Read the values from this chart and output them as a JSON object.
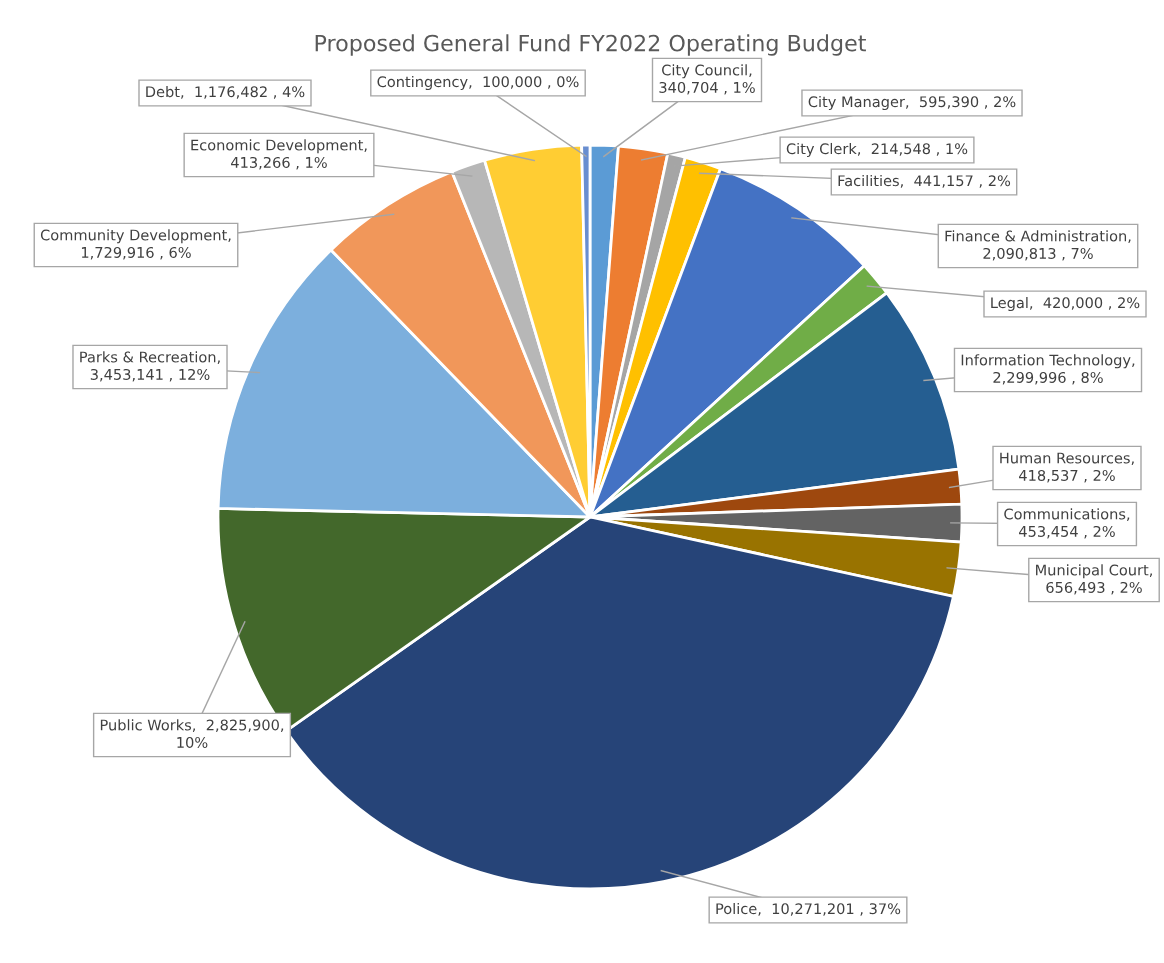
{
  "chart_data": {
    "type": "pie",
    "title": "Proposed General Fund FY2022 Operating Budget",
    "categories": [
      "City Council",
      "City Manager",
      "City Clerk",
      "Facilities",
      "Finance & Administration",
      "Legal",
      "Information Technology",
      "Human Resources",
      "Communications",
      "Municipal Court",
      "Police",
      "Public Works",
      "Parks & Recreation",
      "Community Development",
      "Economic Development",
      "Debt",
      "Contingency"
    ],
    "values": [
      340704,
      595390,
      214548,
      441157,
      2090813,
      420000,
      2299996,
      418537,
      453454,
      656493,
      10271201,
      2825900,
      3453141,
      1729916,
      413266,
      1176482,
      100000
    ],
    "colors": [
      "#5b9bd5",
      "#ed7d31",
      "#a5a5a5",
      "#ffc000",
      "#4472c4",
      "#70ad47",
      "#255e91",
      "#9e480e",
      "#636363",
      "#997300",
      "#264478",
      "#43682b",
      "#7cafdd",
      "#f1975a",
      "#b7b7b7",
      "#ffcd33",
      "#698ed0"
    ],
    "value_labels": [
      ",\n340,704 , 1%",
      ",  595,390 , 2%",
      ",  214,548 , 1%",
      ",  441,157 , 2%",
      ",\n2,090,813 , 7%",
      ",  420,000 , 2%",
      ",\n2,299,996 , 8%",
      ",\n418,537 , 2%",
      ",\n453,454 , 2%",
      ",\n656,493 , 2%",
      ",  10,271,201 , 37%",
      ",  2,825,900,\n10%",
      ",\n3,453,141 , 12%",
      ",\n1,729,916 , 6%",
      ",\n413,266 , 1%",
      ",  1,176,482 , 4%",
      ",  100,000 , 0%"
    ]
  }
}
